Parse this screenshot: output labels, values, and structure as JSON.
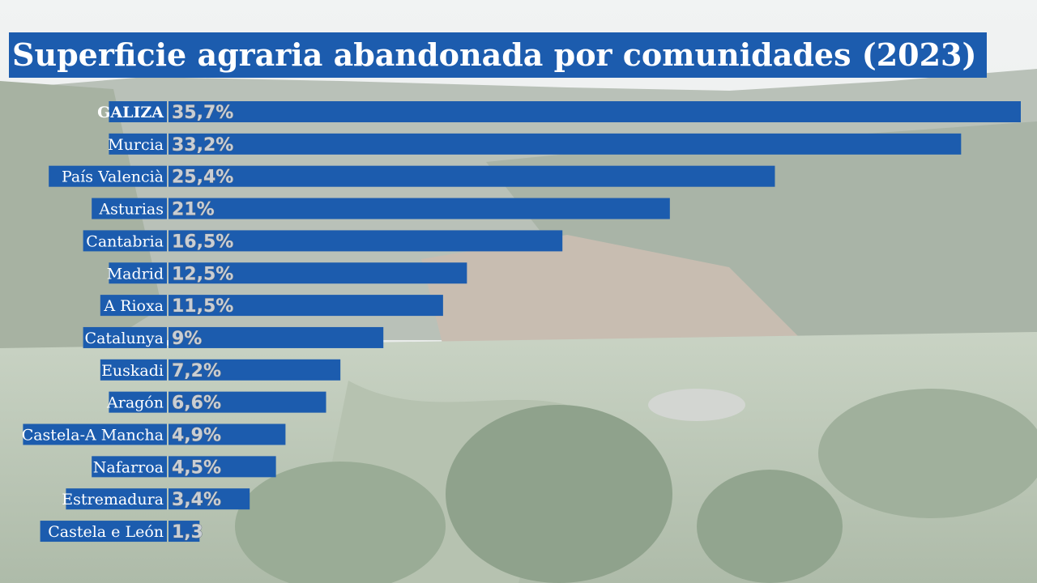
{
  "chart_data": {
    "type": "bar",
    "orientation": "horizontal",
    "title": "Superficie agraria abandonada por comunidades (2023)",
    "categories": [
      "GALIZA",
      "Murcia",
      "País Valencià",
      "Asturias",
      "Cantabria",
      "Madrid",
      "A Rioxa",
      "Catalunya",
      "Euskadi",
      "Aragón",
      "Castela-A Mancha",
      "Nafarroa",
      "Estremadura",
      "Castela e León"
    ],
    "values": [
      35.7,
      33.2,
      25.4,
      21,
      16.5,
      12.5,
      11.5,
      9,
      7.2,
      6.6,
      4.9,
      4.5,
      3.4,
      1.3
    ],
    "value_labels": [
      "35,7%",
      "33,2%",
      "25,4%",
      "21%",
      "16,5%",
      "12,5%",
      "11,5%",
      "9%",
      "7,2%",
      "6,6%",
      "4,9%",
      "4,5%",
      "3,4%",
      "1,3"
    ],
    "xlim": [
      0,
      35.7
    ],
    "grid": false,
    "legend": "none",
    "colors": {
      "bar": "#1c5cae",
      "title_bg": "#1c5cae",
      "text": "#ffffff"
    },
    "background": "photo of abandoned farmland with shrubs and wooded hills"
  }
}
